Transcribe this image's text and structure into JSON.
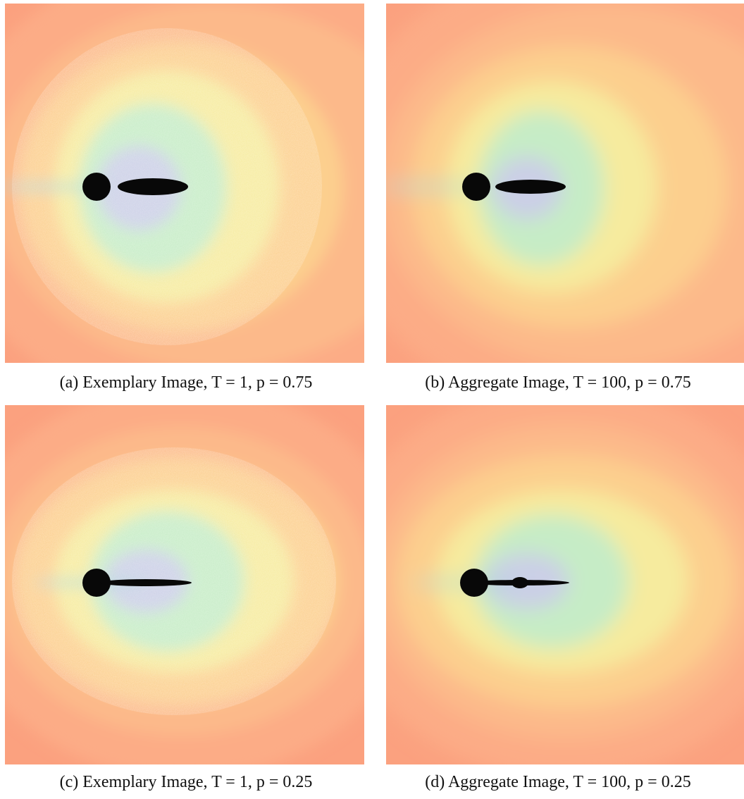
{
  "panels": [
    {
      "caption": "(a) Exemplary Image, T = 1, p = 0.75"
    },
    {
      "caption": "(b) Aggregate Image, T = 100, p = 0.75"
    },
    {
      "caption": "(c) Exemplary Image, T = 1, p = 0.25"
    },
    {
      "caption": "(d) Aggregate Image, T = 100, p = 0.25"
    }
  ]
}
